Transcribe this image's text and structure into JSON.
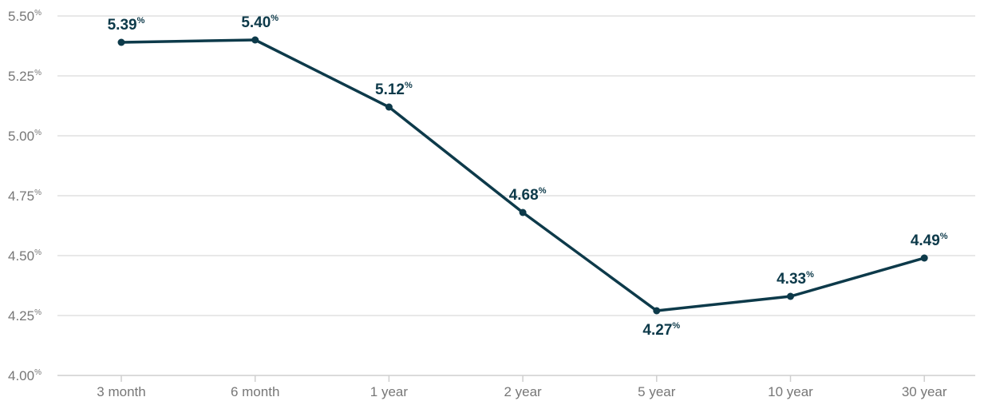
{
  "chart_data": {
    "type": "line",
    "categories": [
      "3 month",
      "6 month",
      "1 year",
      "2 year",
      "5 year",
      "10 year",
      "30 year"
    ],
    "series": [
      {
        "values": [
          5.39,
          5.4,
          5.12,
          4.68,
          4.27,
          4.33,
          4.49
        ],
        "labels": [
          "5.39",
          "5.40",
          "5.12",
          "4.68",
          "4.27",
          "4.33",
          "4.49"
        ],
        "color": "#0d3a4a"
      }
    ],
    "y_ticks": [
      "4.00",
      "4.25",
      "4.50",
      "4.75",
      "5.00",
      "5.25",
      "5.50"
    ],
    "value_suffix": "%",
    "ylim": [
      4.0,
      5.5
    ],
    "grid": true,
    "title": "",
    "xlabel": "",
    "ylabel": ""
  }
}
